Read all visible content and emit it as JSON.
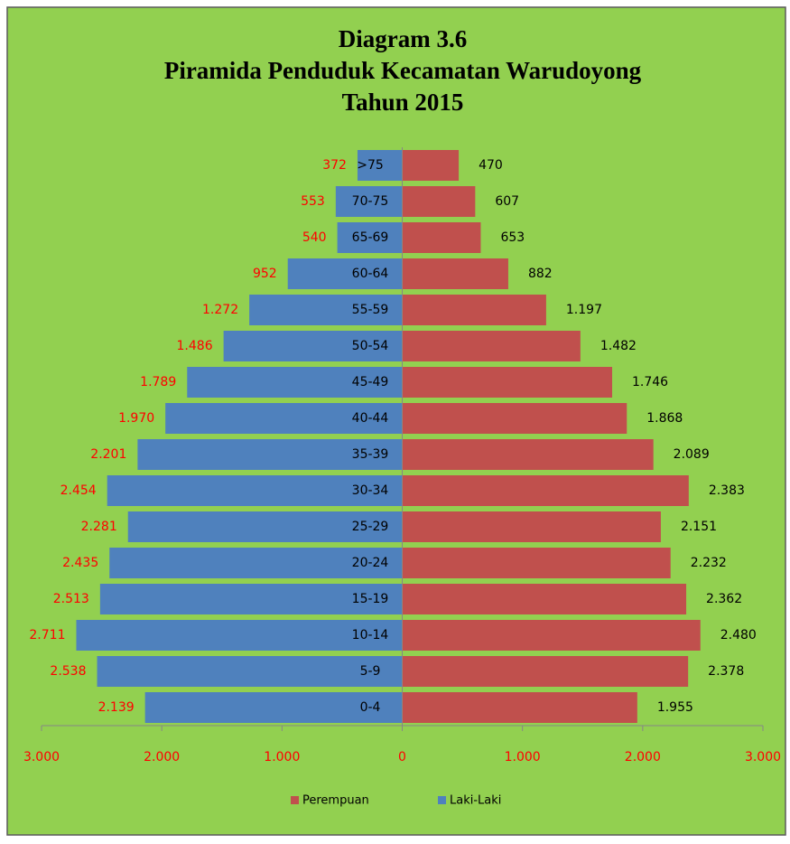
{
  "chart_data": {
    "type": "bar",
    "orientation": "horizontal",
    "stacked": false,
    "title": [
      "Diagram 3.6",
      "Piramida Penduduk Kecamatan Warudoyong",
      "Tahun 2015"
    ],
    "categories": [
      ">75",
      "70-75",
      "65-69",
      "60-64",
      "55-59",
      "50-54",
      "45-49",
      "40-44",
      "35-39",
      "30-34",
      "25-29",
      "20-24",
      "15-19",
      "10-14",
      "5-9",
      "0-4"
    ],
    "series": [
      {
        "name": "Perempuan",
        "color": "#c0504d",
        "label_color": "#000000",
        "values": [
          470,
          607,
          653,
          882,
          1197,
          1482,
          1746,
          1868,
          2089,
          2383,
          2151,
          2232,
          2362,
          2480,
          2378,
          1955
        ],
        "value_labels": [
          "470",
          "607",
          "653",
          "882",
          "1.197",
          "1.482",
          "1.746",
          "1.868",
          "2.089",
          "2.383",
          "2.151",
          "2.232",
          "2.362",
          "2.480",
          "2.378",
          "1.955"
        ]
      },
      {
        "name": "Laki-Laki",
        "color": "#4f81bd",
        "label_color": "#ff0000",
        "values": [
          -372,
          -553,
          -540,
          -952,
          -1272,
          -1486,
          -1789,
          -1970,
          -2201,
          -2454,
          -2281,
          -2435,
          -2513,
          -2711,
          -2538,
          -2139
        ],
        "value_labels": [
          "372",
          "553",
          "540",
          "952",
          "1.272",
          "1.486",
          "1.789",
          "1.970",
          "2.201",
          "2.454",
          "2.281",
          "2.435",
          "2.513",
          "2.711",
          "2.538",
          "2.139"
        ]
      }
    ],
    "xlim": [
      -3000,
      3000
    ],
    "xticks": [
      {
        "value": -3000,
        "label": "3.000"
      },
      {
        "value": -2000,
        "label": "2.000"
      },
      {
        "value": -1000,
        "label": "1.000"
      },
      0,
      {
        "value": 1000,
        "label": "1.000"
      },
      {
        "value": 2000,
        "label": "2.000"
      },
      {
        "value": 3000,
        "label": "3.000"
      }
    ],
    "tick_label_color": "#ff0000",
    "background": "#92d050",
    "legend": "bottom"
  }
}
